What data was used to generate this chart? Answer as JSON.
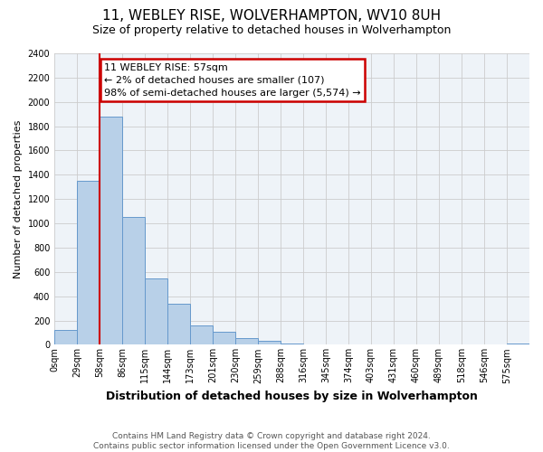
{
  "title": "11, WEBLEY RISE, WOLVERHAMPTON, WV10 8UH",
  "subtitle": "Size of property relative to detached houses in Wolverhampton",
  "xlabel": "Distribution of detached houses by size in Wolverhampton",
  "ylabel": "Number of detached properties",
  "footer_lines": [
    "Contains HM Land Registry data © Crown copyright and database right 2024.",
    "Contains public sector information licensed under the Open Government Licence v3.0."
  ],
  "bin_labels": [
    "0sqm",
    "29sqm",
    "58sqm",
    "86sqm",
    "115sqm",
    "144sqm",
    "173sqm",
    "201sqm",
    "230sqm",
    "259sqm",
    "288sqm",
    "316sqm",
    "345sqm",
    "374sqm",
    "403sqm",
    "431sqm",
    "460sqm",
    "489sqm",
    "518sqm",
    "546sqm",
    "575sqm"
  ],
  "bar_heights": [
    125,
    1350,
    1880,
    1050,
    550,
    335,
    160,
    110,
    55,
    30,
    8,
    5,
    3,
    3,
    0,
    3,
    0,
    0,
    0,
    0,
    8
  ],
  "bar_color": "#b8d0e8",
  "bar_edge_color": "#6699cc",
  "ylim": [
    0,
    2400
  ],
  "yticks": [
    0,
    200,
    400,
    600,
    800,
    1000,
    1200,
    1400,
    1600,
    1800,
    2000,
    2200,
    2400
  ],
  "property_line_x": 2,
  "property_line_color": "#cc0000",
  "annotation_title": "11 WEBLEY RISE: 57sqm",
  "annotation_line1": "← 2% of detached houses are smaller (107)",
  "annotation_line2": "98% of semi-detached houses are larger (5,574) →",
  "annotation_box_color": "#ffffff",
  "annotation_box_edge": "#cc0000"
}
